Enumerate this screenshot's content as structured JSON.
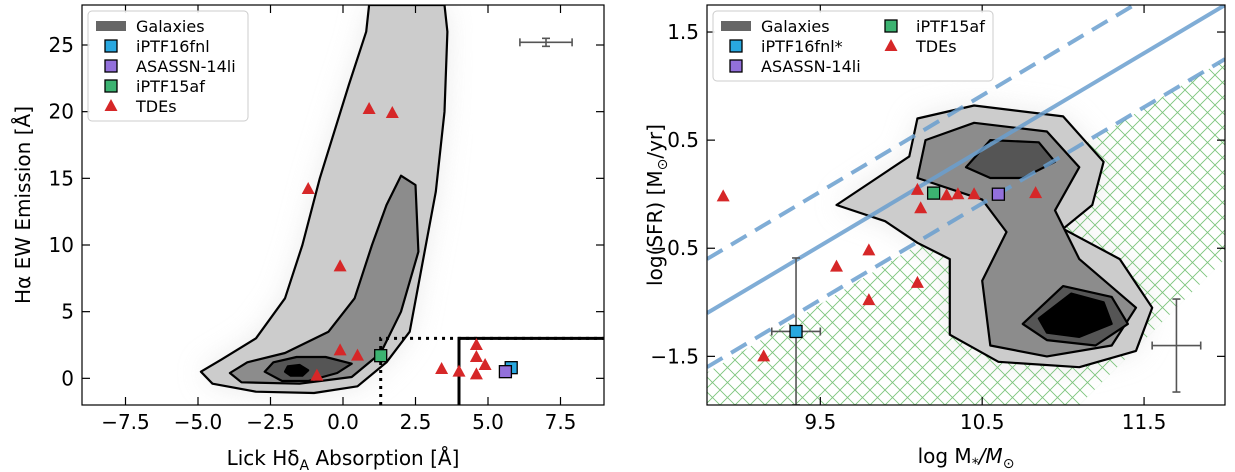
{
  "colors": {
    "contour_light": "#cccccc",
    "contour_mid": "#8c8c8c",
    "contour_dark": "#555555",
    "contour_core": "#000000",
    "galaxies_legend": "#666666",
    "iptf16fnl": "#29a8e0",
    "asassn14li": "#9370db",
    "iptf15af": "#3cb371",
    "tdes": "#d62728",
    "sfms_line": "#6a9fcf",
    "green_valley_hatch": "#7cc47c",
    "errorbar": "#555555"
  },
  "chart_data": [
    {
      "type": "scatter",
      "xlabel": "Lick Hδ",
      "xlabel_sub": "A",
      "xlabel_tail": " Absorption [Å]",
      "ylabel": "Hα EW Emission [Å]",
      "xlim": [
        -9,
        9
      ],
      "ylim": [
        -2,
        28
      ],
      "xticks": [
        -7.5,
        -5.0,
        -2.5,
        0.0,
        2.5,
        5.0,
        7.5
      ],
      "xtick_labels": [
        "−7.5",
        "−5.0",
        "−2.5",
        "0.0",
        "2.5",
        "5.0",
        "7.5"
      ],
      "yticks": [
        0,
        5,
        10,
        15,
        20,
        25
      ],
      "ytick_labels": [
        "0",
        "5",
        "10",
        "15",
        "20",
        "25"
      ],
      "grid": false,
      "legend": {
        "placement": "top-left",
        "entries": [
          {
            "label": "Galaxies",
            "marker": "band"
          },
          {
            "label": "iPTF16fnl",
            "marker": "square"
          },
          {
            "label": "ASASSN-14li",
            "marker": "square"
          },
          {
            "label": "iPTF15af",
            "marker": "square"
          },
          {
            "label": "TDEs",
            "marker": "triangle"
          }
        ]
      },
      "contours": [
        {
          "level": "outer",
          "points": [
            [
              -4.9,
              0.5
            ],
            [
              -4.5,
              -0.4
            ],
            [
              -3,
              -1
            ],
            [
              -1,
              -1.1
            ],
            [
              0.5,
              -0.6
            ],
            [
              1.5,
              1.2
            ],
            [
              2.3,
              3.5
            ],
            [
              2.6,
              7
            ],
            [
              3.2,
              14
            ],
            [
              3.5,
              20
            ],
            [
              3.6,
              26
            ],
            [
              3.5,
              28
            ],
            [
              0.9,
              28
            ],
            [
              0.8,
              26
            ],
            [
              0.2,
              22
            ],
            [
              -0.8,
              15
            ],
            [
              -1.4,
              10
            ],
            [
              -2,
              6
            ],
            [
              -3,
              3
            ],
            [
              -4.2,
              1.4
            ]
          ]
        },
        {
          "level": "middle",
          "points": [
            [
              -3.9,
              0.4
            ],
            [
              -3.5,
              -0.3
            ],
            [
              -1.5,
              -0.4
            ],
            [
              0.3,
              0.1
            ],
            [
              1.3,
              1.9
            ],
            [
              2,
              5
            ],
            [
              2.6,
              9.5
            ],
            [
              2.5,
              14.5
            ],
            [
              2,
              15.2
            ],
            [
              1.5,
              13
            ],
            [
              1,
              10
            ],
            [
              0.4,
              6
            ],
            [
              -0.5,
              3.5
            ],
            [
              -2,
              1.9
            ],
            [
              -3.3,
              1.2
            ]
          ]
        },
        {
          "level": "inner",
          "points": [
            [
              -2.7,
              0.5
            ],
            [
              -2.1,
              -0.2
            ],
            [
              -1.2,
              -0.2
            ],
            [
              -0.2,
              0.4
            ],
            [
              0.3,
              1.1
            ],
            [
              -0.6,
              1.6
            ],
            [
              -1.6,
              1.6
            ],
            [
              -2.4,
              1.2
            ]
          ]
        },
        {
          "level": "core",
          "points": [
            [
              -2.0,
              0.5
            ],
            [
              -1.8,
              0.2
            ],
            [
              -1.4,
              0.2
            ],
            [
              -1.2,
              0.6
            ],
            [
              -1.5,
              1.0
            ],
            [
              -1.9,
              0.9
            ]
          ]
        }
      ],
      "series": [
        {
          "name": "iPTF16fnl",
          "marker": "square",
          "points": [
            [
              5.8,
              0.8
            ]
          ]
        },
        {
          "name": "ASASSN-14li",
          "marker": "square",
          "points": [
            [
              5.6,
              0.5
            ]
          ]
        },
        {
          "name": "iPTF15af",
          "marker": "square",
          "points": [
            [
              1.3,
              1.7
            ]
          ]
        },
        {
          "name": "TDEs",
          "marker": "triangle",
          "points": [
            [
              -1.2,
              14.2
            ],
            [
              0.9,
              20.2
            ],
            [
              1.7,
              19.9
            ],
            [
              -0.1,
              8.4
            ],
            [
              -0.1,
              2.1
            ],
            [
              0.5,
              1.7
            ],
            [
              -0.9,
              0.2
            ],
            [
              3.4,
              0.7
            ],
            [
              4.0,
              0.5
            ],
            [
              4.6,
              0.3
            ],
            [
              4.9,
              1.0
            ],
            [
              4.6,
              1.6
            ],
            [
              4.6,
              2.5
            ]
          ]
        }
      ],
      "selection_boxes": [
        {
          "style": "dotted",
          "x_from": 1.3,
          "y_max": 3
        },
        {
          "style": "solid",
          "x_from": 4.0,
          "y_max": 3
        }
      ],
      "representative_errorbar": {
        "x": 7.0,
        "y": 25.2,
        "x_err": 0.9,
        "y_err": 0.3
      }
    },
    {
      "type": "scatter",
      "xlabel": "log M",
      "xlabel_tail": "/M",
      "ylabel": "log(SFR) [M",
      "ylabel_tail": "/yr]",
      "xlim": [
        8.8,
        12.0
      ],
      "ylim": [
        -1.95,
        1.75
      ],
      "xticks": [
        9.5,
        10.5,
        11.5
      ],
      "xtick_labels": [
        "9.5",
        "10.5",
        "11.5"
      ],
      "yticks": [
        -1.5,
        -0.5,
        0.5,
        1.5
      ],
      "ytick_labels": [
        "−1.5",
        "−0.5",
        "0.5",
        "1.5"
      ],
      "grid": false,
      "legend": {
        "placement": "top-left",
        "entries": [
          {
            "label": "Galaxies",
            "marker": "band"
          },
          {
            "label": "iPTF16fnl*",
            "marker": "square"
          },
          {
            "label": "ASASSN-14li",
            "marker": "square"
          },
          {
            "label": "iPTF15af",
            "marker": "square"
          },
          {
            "label": "TDEs",
            "marker": "triangle"
          }
        ]
      },
      "sfms_lines": [
        {
          "style": "solid",
          "x": [
            8.8,
            12.0
          ],
          "y": [
            -1.1,
            1.75
          ]
        },
        {
          "style": "dashed",
          "x": [
            8.8,
            12.0
          ],
          "y": [
            -0.6,
            2.25
          ]
        },
        {
          "style": "dashed",
          "x": [
            8.8,
            12.0
          ],
          "y": [
            -1.6,
            1.25
          ]
        }
      ],
      "green_valley_region": [
        [
          8.8,
          -1.65
        ],
        [
          12.0,
          1.25
        ],
        [
          12.0,
          -0.6
        ],
        [
          11.1,
          -1.95
        ],
        [
          8.8,
          -1.95
        ]
      ],
      "contours": [
        {
          "level": "outer",
          "points": [
            [
              9.6,
              -0.1
            ],
            [
              9.85,
              0.15
            ],
            [
              10.05,
              0.35
            ],
            [
              10.1,
              0.7
            ],
            [
              10.45,
              0.82
            ],
            [
              11.0,
              0.72
            ],
            [
              11.25,
              0.3
            ],
            [
              11.18,
              -0.1
            ],
            [
              11.0,
              -0.32
            ],
            [
              11.35,
              -0.6
            ],
            [
              11.55,
              -1.05
            ],
            [
              11.45,
              -1.45
            ],
            [
              11.1,
              -1.6
            ],
            [
              10.6,
              -1.55
            ],
            [
              10.3,
              -1.3
            ],
            [
              10.3,
              -0.6
            ],
            [
              10.1,
              -0.45
            ],
            [
              9.9,
              -0.25
            ]
          ]
        },
        {
          "level": "middle",
          "points": [
            [
              10.1,
              0.15
            ],
            [
              10.15,
              0.5
            ],
            [
              10.45,
              0.66
            ],
            [
              10.9,
              0.58
            ],
            [
              11.1,
              0.25
            ],
            [
              10.95,
              -0.15
            ],
            [
              11.1,
              -0.6
            ],
            [
              11.45,
              -1.05
            ],
            [
              11.3,
              -1.4
            ],
            [
              10.9,
              -1.5
            ],
            [
              10.55,
              -1.4
            ],
            [
              10.5,
              -0.8
            ],
            [
              10.65,
              -0.35
            ],
            [
              10.5,
              -0.05
            ],
            [
              10.3,
              0.05
            ]
          ]
        },
        {
          "level": "inner",
          "points": [
            [
              10.4,
              0.25
            ],
            [
              10.55,
              0.5
            ],
            [
              10.85,
              0.48
            ],
            [
              10.95,
              0.3
            ],
            [
              10.75,
              0.15
            ],
            [
              10.55,
              0.15
            ]
          ]
        },
        {
          "level": "inner",
          "points": [
            [
              10.75,
              -1.2
            ],
            [
              11.0,
              -0.85
            ],
            [
              11.3,
              -0.95
            ],
            [
              11.4,
              -1.2
            ],
            [
              11.2,
              -1.4
            ],
            [
              10.9,
              -1.35
            ]
          ]
        },
        {
          "level": "core",
          "points": [
            [
              10.85,
              -1.15
            ],
            [
              11.05,
              -0.92
            ],
            [
              11.25,
              -1.0
            ],
            [
              11.3,
              -1.2
            ],
            [
              11.1,
              -1.32
            ],
            [
              10.9,
              -1.28
            ]
          ]
        }
      ],
      "series": [
        {
          "name": "iPTF16fnl*",
          "marker": "square",
          "points": [
            [
              9.35,
              -1.27
            ]
          ],
          "y_err": 0.68,
          "x_err": 0.15
        },
        {
          "name": "ASASSN-14li",
          "marker": "square",
          "points": [
            [
              10.6,
              0.0
            ]
          ]
        },
        {
          "name": "iPTF15af",
          "marker": "square",
          "points": [
            [
              10.2,
              0.01
            ]
          ]
        },
        {
          "name": "TDEs",
          "marker": "triangle",
          "points": [
            [
              8.9,
              -0.02
            ],
            [
              9.6,
              -0.67
            ],
            [
              9.8,
              -0.98
            ],
            [
              9.8,
              -0.52
            ],
            [
              9.15,
              -1.5
            ],
            [
              10.1,
              -0.82
            ],
            [
              10.1,
              0.04
            ],
            [
              10.12,
              -0.13
            ],
            [
              10.28,
              -0.01
            ],
            [
              10.35,
              0.0
            ],
            [
              10.45,
              0.0
            ],
            [
              10.83,
              0.01
            ]
          ]
        }
      ],
      "representative_errorbar": {
        "x": 11.7,
        "y": -1.4,
        "x_err": 0.15,
        "y_err": 0.43
      }
    }
  ]
}
